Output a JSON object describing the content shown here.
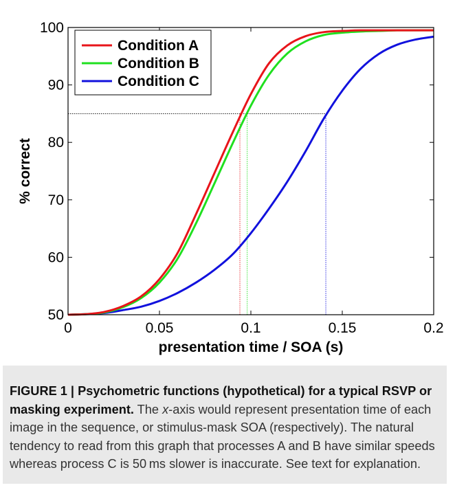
{
  "chart_data": {
    "type": "line",
    "title": "",
    "xlabel": "presentation time / SOA (s)",
    "ylabel": "% correct",
    "xlim": [
      0,
      0.2
    ],
    "ylim": [
      50,
      100
    ],
    "xticks": [
      0,
      0.05,
      0.1,
      0.15,
      0.2
    ],
    "xtick_labels": [
      "0",
      "0.05",
      "0.1",
      "0.15",
      "0.2"
    ],
    "yticks": [
      50,
      60,
      70,
      80,
      90,
      100
    ],
    "ytick_labels": [
      "50",
      "60",
      "70",
      "80",
      "90",
      "100"
    ],
    "grid": false,
    "legend_position": "top-left",
    "series": [
      {
        "name": "Condition A",
        "color": "#e8141a",
        "x": [
          0,
          0.01,
          0.02,
          0.03,
          0.04,
          0.05,
          0.06,
          0.07,
          0.08,
          0.09,
          0.1,
          0.11,
          0.12,
          0.13,
          0.14,
          0.15,
          0.16,
          0.17,
          0.18,
          0.19,
          0.2
        ],
        "y": [
          50,
          50.1,
          50.5,
          51.5,
          53.2,
          56.2,
          60.8,
          67.5,
          74.6,
          81.7,
          88.4,
          93.8,
          96.9,
          98.5,
          99.2,
          99.4,
          99.5,
          99.5,
          99.5,
          99.5,
          99.5
        ]
      },
      {
        "name": "Condition B",
        "color": "#1fe01f",
        "x": [
          0,
          0.01,
          0.02,
          0.03,
          0.04,
          0.05,
          0.06,
          0.07,
          0.08,
          0.09,
          0.1,
          0.11,
          0.12,
          0.13,
          0.14,
          0.15,
          0.16,
          0.17,
          0.18,
          0.19,
          0.2
        ],
        "y": [
          50,
          50.1,
          50.4,
          51.3,
          52.9,
          55.6,
          59.8,
          65.9,
          72.8,
          79.8,
          86.4,
          91.8,
          95.5,
          97.6,
          98.7,
          99.1,
          99.3,
          99.4,
          99.5,
          99.5,
          99.5
        ]
      },
      {
        "name": "Condition C",
        "color": "#1111dd",
        "x": [
          0,
          0.01,
          0.02,
          0.03,
          0.04,
          0.05,
          0.06,
          0.07,
          0.08,
          0.09,
          0.1,
          0.11,
          0.12,
          0.13,
          0.14,
          0.15,
          0.16,
          0.17,
          0.18,
          0.19,
          0.2
        ],
        "y": [
          50,
          50.1,
          50.3,
          50.8,
          51.4,
          52.4,
          53.8,
          55.6,
          57.8,
          60.5,
          64.2,
          68.5,
          73.2,
          78.5,
          84.2,
          89.0,
          92.8,
          95.4,
          97.0,
          97.9,
          98.4
        ]
      }
    ],
    "threshold": {
      "y": 85,
      "line_color": "#000000",
      "drop_lines": [
        {
          "x": 0.094,
          "color": "#e8141a"
        },
        {
          "x": 0.098,
          "color": "#1fe01f"
        },
        {
          "x": 0.141,
          "color": "#1111dd"
        }
      ]
    }
  },
  "caption": {
    "bold": "FIGURE 1 | Psychometric functions (hypothetical) for a typical RSVP or masking experiment.",
    "text_1": " The ",
    "text_italic": "x",
    "text_2": "-axis would represent presentation time of each image in the sequence, or stimulus-mask SOA (respectively). The natural tendency to read from this graph that processes A and B have similar speeds whereas process C is 50 ms slower is inaccurate. See text for explanation."
  }
}
